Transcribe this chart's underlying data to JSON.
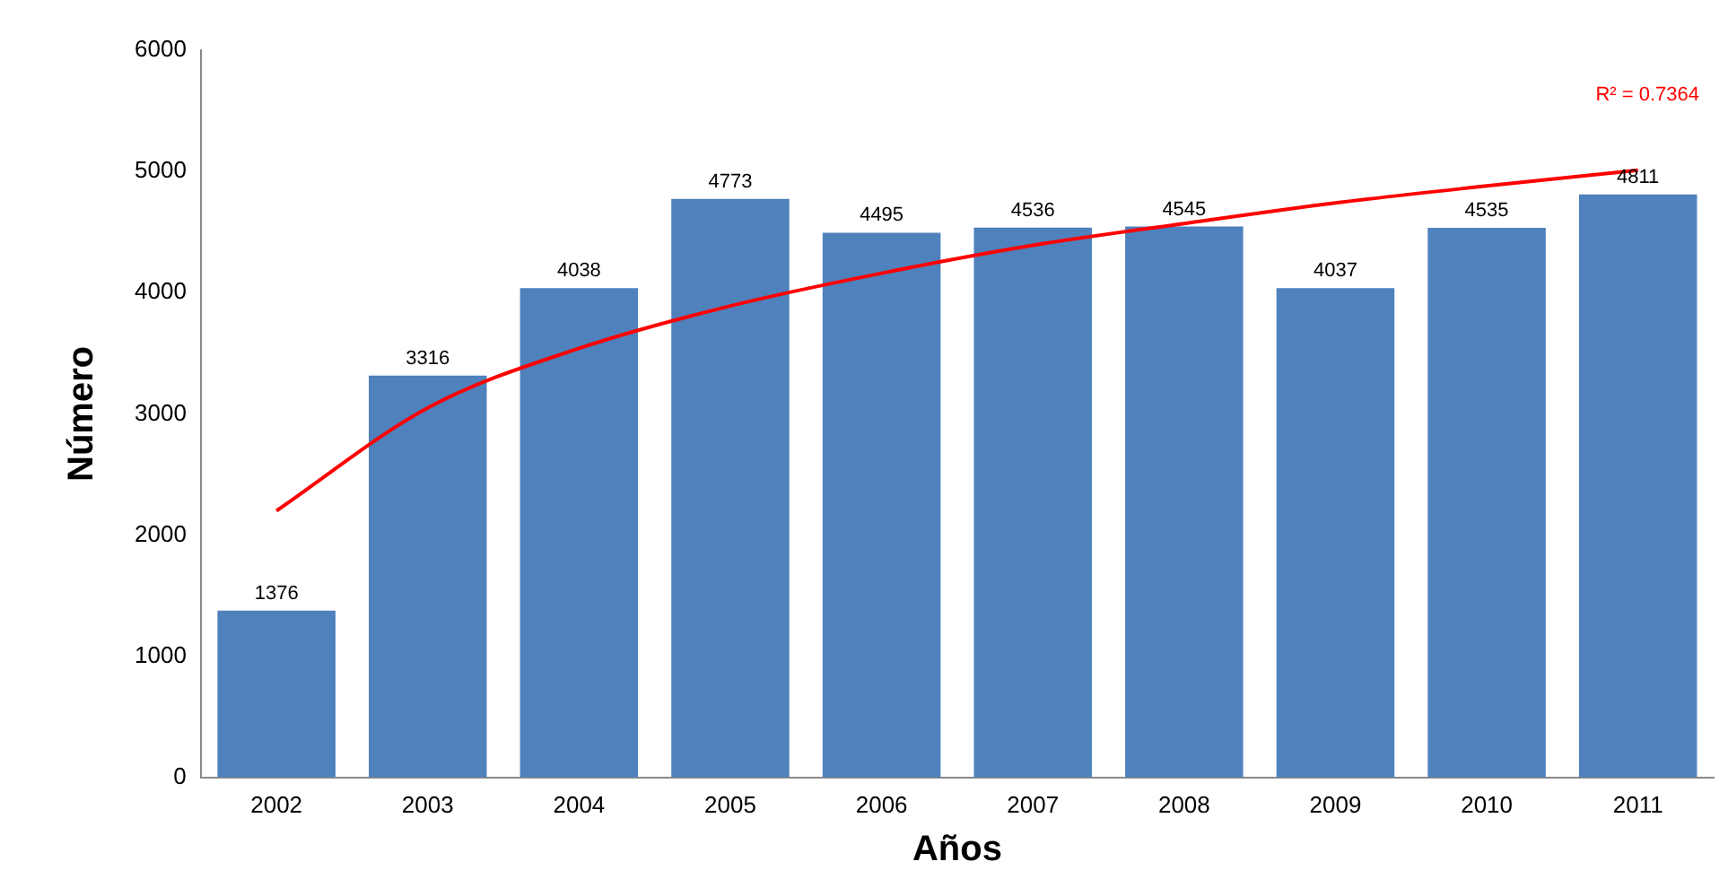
{
  "chart_data": {
    "type": "bar",
    "xlabel": "Años",
    "ylabel": "Número",
    "categories": [
      "2002",
      "2003",
      "2004",
      "2005",
      "2006",
      "2007",
      "2008",
      "2009",
      "2010",
      "2011"
    ],
    "series": [
      {
        "color": "#4f81bd",
        "values": [
          1376,
          3316,
          4038,
          4773,
          4495,
          4536,
          4545,
          4037,
          4535,
          4811
        ],
        "value_labels": [
          "1376",
          "3316",
          "4038",
          "4773",
          "4495",
          "4536",
          "4545",
          "4037",
          "4535",
          "4811"
        ]
      },
      {
        "type": "line",
        "color": "#ff0000",
        "values": [
          2200,
          3050,
          3540,
          3890,
          4160,
          4390,
          4570,
          4740,
          4880,
          5010
        ],
        "marker": "none"
      }
    ],
    "ylim": [
      0,
      6000
    ],
    "yticks": [
      0,
      1000,
      2000,
      3000,
      4000,
      5000,
      6000
    ],
    "grid": false,
    "legend": false,
    "annotations": [
      "R² = 0.7364"
    ]
  }
}
